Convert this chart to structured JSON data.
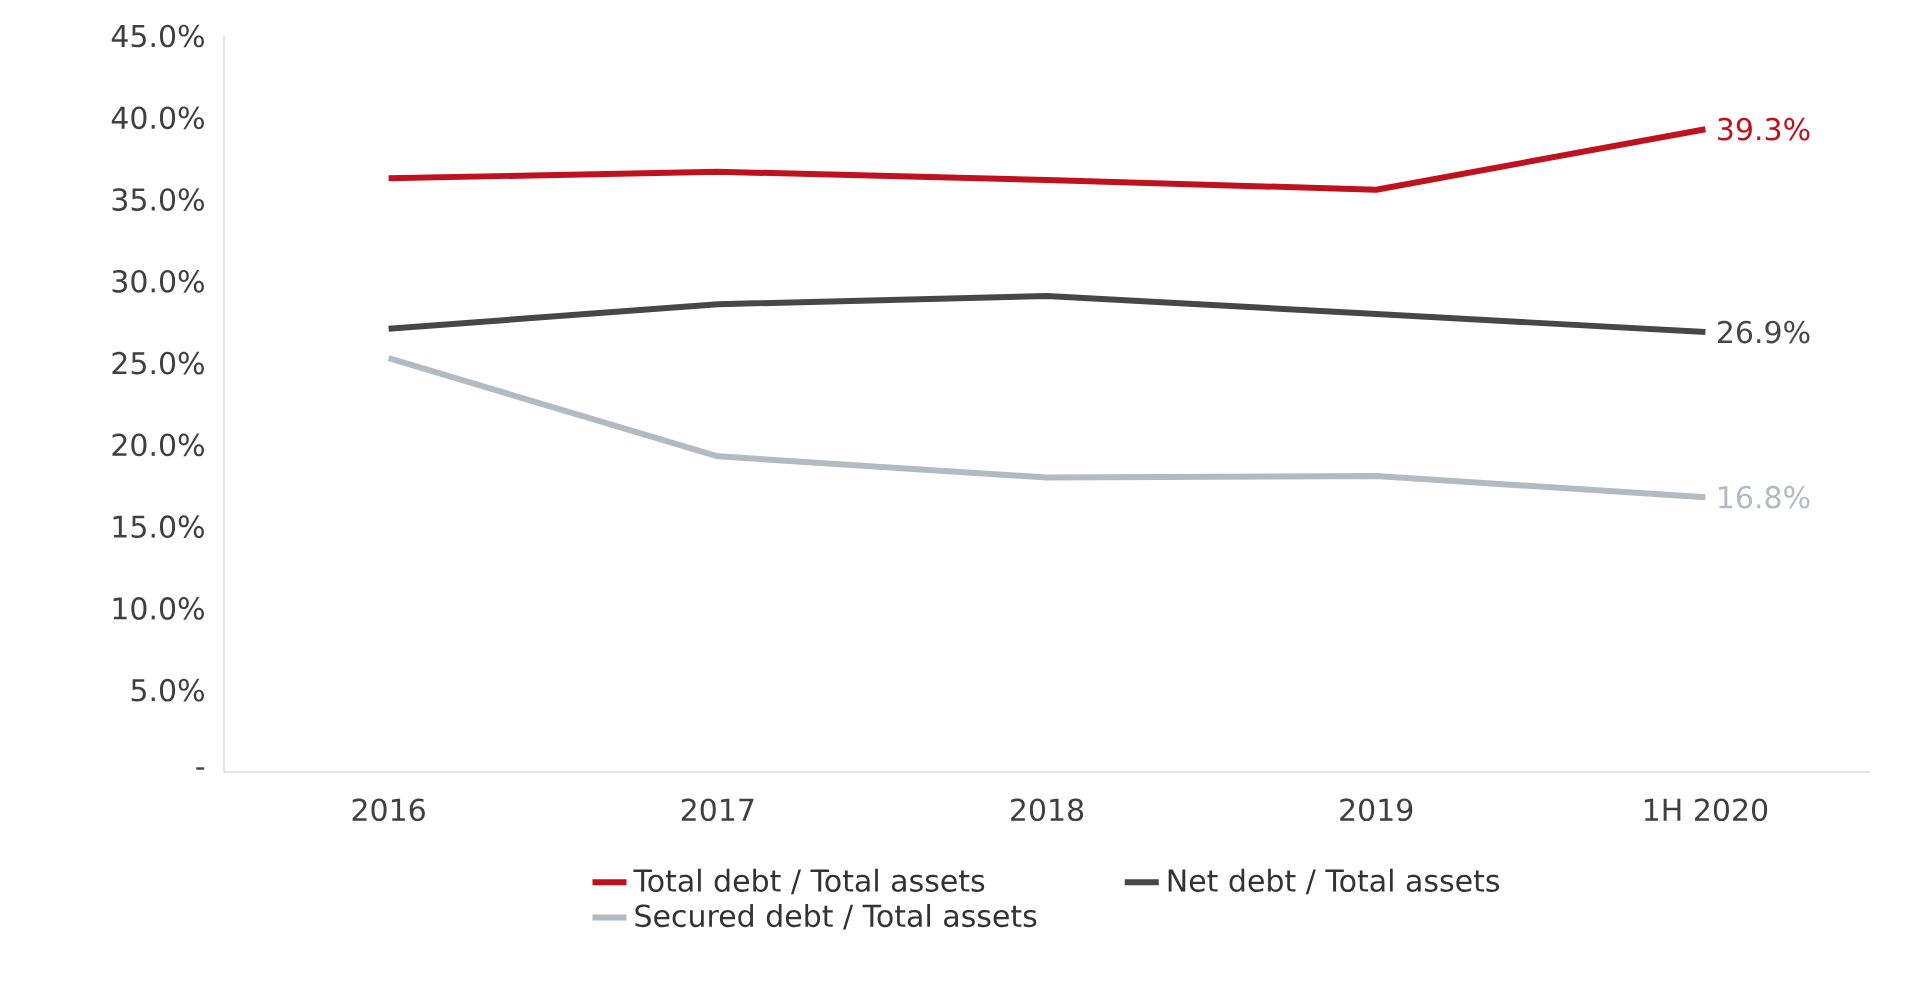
{
  "chart_data": {
    "type": "line",
    "categories": [
      "2016",
      "2017",
      "2018",
      "2019",
      "1H 2020"
    ],
    "series": [
      {
        "name": "Total debt / Total assets",
        "color": "#c0111f",
        "values": [
          36.3,
          36.7,
          36.2,
          35.6,
          39.3
        ],
        "value_labels": [
          null,
          null,
          null,
          null,
          "39.3%"
        ]
      },
      {
        "name": "Net debt / Total assets",
        "color": "#474747",
        "values": [
          27.1,
          28.6,
          29.1,
          28.0,
          26.9
        ],
        "value_labels": [
          null,
          null,
          null,
          null,
          "26.9%"
        ]
      },
      {
        "name": "Secured debt / Total assets",
        "color": "#b4bac2",
        "values": [
          25.3,
          19.3,
          18.0,
          18.1,
          16.8
        ],
        "value_labels": [
          null,
          null,
          null,
          null,
          "16.8%"
        ]
      }
    ],
    "ylim": [
      0,
      45
    ],
    "yticks": [
      {
        "value": 0,
        "label": "-"
      },
      {
        "value": 5,
        "label": "5.0%"
      },
      {
        "value": 10,
        "label": "10.0%"
      },
      {
        "value": 15,
        "label": "15.0%"
      },
      {
        "value": 20,
        "label": "20.0%"
      },
      {
        "value": 25,
        "label": "25.0%"
      },
      {
        "value": 30,
        "label": "30.0%"
      },
      {
        "value": 35,
        "label": "35.0%"
      },
      {
        "value": 40,
        "label": "40.0%"
      },
      {
        "value": 45,
        "label": "45.0%"
      }
    ],
    "legend": "bottom"
  }
}
